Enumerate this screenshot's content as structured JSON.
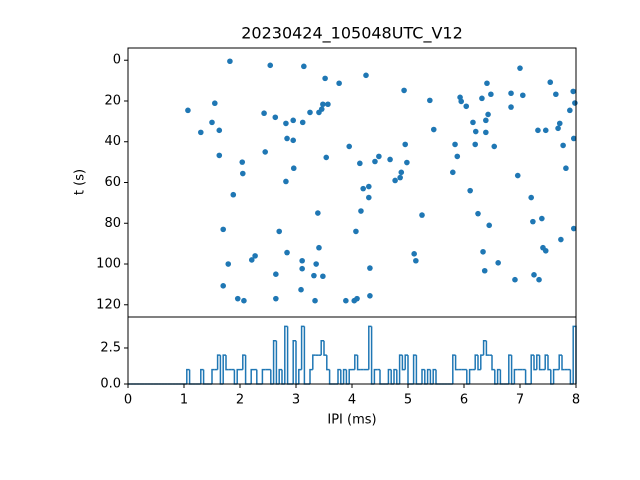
{
  "chart_data": [
    {
      "type": "scatter",
      "title": "20230424_105048UTC_V12",
      "ylabel": "t (s)",
      "color": "#1f77b4",
      "x": [
        1.07,
        1.3,
        1.5,
        1.55,
        1.63,
        1.63,
        1.7,
        1.7,
        1.79,
        1.82,
        1.88,
        1.96,
        2.04,
        2.05,
        2.07,
        2.21,
        2.27,
        2.43,
        2.45,
        2.54,
        2.63,
        2.64,
        2.64,
        2.7,
        2.82,
        2.82,
        2.84,
        2.84,
        2.95,
        2.95,
        2.96,
        3.11,
        3.11,
        3.09,
        3.12,
        3.14,
        3.25,
        3.32,
        3.34,
        3.36,
        3.39,
        3.41,
        3.41,
        3.46,
        3.48,
        3.48,
        3.52,
        3.54,
        3.57,
        3.77,
        3.89,
        3.95,
        4.04,
        4.09,
        4.07,
        4.14,
        4.16,
        4.2,
        4.25,
        4.3,
        4.3,
        4.32,
        4.32,
        4.41,
        4.48,
        4.68,
        4.77,
        4.86,
        4.88,
        4.93,
        4.95,
        4.98,
        5.11,
        5.14,
        5.25,
        5.39,
        5.46,
        5.8,
        5.84,
        5.88,
        5.93,
        5.95,
        6.04,
        6.11,
        6.16,
        6.2,
        6.21,
        6.25,
        6.32,
        6.34,
        6.37,
        6.39,
        6.39,
        6.41,
        6.43,
        6.45,
        6.48,
        6.54,
        6.61,
        6.84,
        6.84,
        6.91,
        6.96,
        7.0,
        7.05,
        7.2,
        7.23,
        7.25,
        7.32,
        7.34,
        7.39,
        7.41,
        7.46,
        7.46,
        7.54,
        7.64,
        7.68,
        7.71,
        7.73,
        7.77,
        7.82,
        7.89,
        7.95,
        7.96,
        7.98,
        7.96
      ],
      "y": [
        24.6,
        35.4,
        30.5,
        21.1,
        34.4,
        46.7,
        83.0,
        110.7,
        100.0,
        0.5,
        66.0,
        117.0,
        50.0,
        55.6,
        118.0,
        98.0,
        96.0,
        26.0,
        45.0,
        2.5,
        28.0,
        105.0,
        117.0,
        84.0,
        31.0,
        59.5,
        38.4,
        94.4,
        29.5,
        39.3,
        53.0,
        98.4,
        102.3,
        112.6,
        30.5,
        3.0,
        25.6,
        105.7,
        118.0,
        100.0,
        75.0,
        25.6,
        92.0,
        24.0,
        21.6,
        106.0,
        8.9,
        47.7,
        21.6,
        11.3,
        118.0,
        42.3,
        118.0,
        117.0,
        84.0,
        50.6,
        74.0,
        63.0,
        7.4,
        62.0,
        67.4,
        115.6,
        102.0,
        49.7,
        47.2,
        48.7,
        59.0,
        57.6,
        55.0,
        14.8,
        41.3,
        50.2,
        95.0,
        98.4,
        76.0,
        19.7,
        34.0,
        55.0,
        41.3,
        47.2,
        18.2,
        20.2,
        22.6,
        64.0,
        30.5,
        41.3,
        35.0,
        75.3,
        18.7,
        94.0,
        103.3,
        29.5,
        35.4,
        11.3,
        26.6,
        81.0,
        16.7,
        42.3,
        99.4,
        23.0,
        16.2,
        107.7,
        56.6,
        3.9,
        17.2,
        67.4,
        79.2,
        105.3,
        34.4,
        107.7,
        77.7,
        92.0,
        34.4,
        93.5,
        10.8,
        16.7,
        33.4,
        31.0,
        88.0,
        41.8,
        53.0,
        24.6,
        15.3,
        38.4,
        21.0,
        82.6
      ],
      "xlim": [
        0,
        8
      ],
      "ylim": [
        126,
        -6
      ],
      "yticks": [
        0,
        20,
        40,
        60,
        80,
        100,
        120
      ]
    },
    {
      "type": "histogram",
      "xlabel": "IPI (ms)",
      "color": "#1f77b4",
      "bins": [
        0,
        0.05,
        0.1,
        0.15,
        0.2,
        0.25,
        0.3,
        0.35,
        0.4,
        0.45,
        0.5,
        0.55,
        0.6,
        0.65,
        0.7,
        0.75,
        0.8,
        0.85,
        0.9,
        0.95,
        1,
        1.05,
        1.1,
        1.15,
        1.2,
        1.25,
        1.3,
        1.35,
        1.4,
        1.45,
        1.5,
        1.55,
        1.6,
        1.65,
        1.7,
        1.75,
        1.8,
        1.85,
        1.9,
        1.95,
        2,
        2.05,
        2.1,
        2.15,
        2.2,
        2.25,
        2.3,
        2.35,
        2.4,
        2.45,
        2.5,
        2.55,
        2.6,
        2.65,
        2.7,
        2.75,
        2.8,
        2.85,
        2.9,
        2.95,
        3,
        3.05,
        3.1,
        3.15,
        3.2,
        3.25,
        3.3,
        3.35,
        3.4,
        3.45,
        3.5,
        3.55,
        3.6,
        3.65,
        3.7,
        3.75,
        3.8,
        3.85,
        3.9,
        3.95,
        4,
        4.05,
        4.1,
        4.15,
        4.2,
        4.25,
        4.3,
        4.35,
        4.4,
        4.45,
        4.5,
        4.55,
        4.6,
        4.65,
        4.7,
        4.75,
        4.8,
        4.85,
        4.9,
        4.95,
        5,
        5.05,
        5.1,
        5.15,
        5.2,
        5.25,
        5.3,
        5.35,
        5.4,
        5.45,
        5.5,
        5.55,
        5.6,
        5.65,
        5.7,
        5.75,
        5.8,
        5.85,
        5.9,
        5.95,
        6,
        6.05,
        6.1,
        6.15,
        6.2,
        6.25,
        6.3,
        6.35,
        6.4,
        6.45,
        6.5,
        6.55,
        6.6,
        6.65,
        6.7,
        6.75,
        6.8,
        6.85,
        6.9,
        6.95,
        7,
        7.05,
        7.1,
        7.15,
        7.2,
        7.25,
        7.3,
        7.35,
        7.4,
        7.45,
        7.5,
        7.55,
        7.6,
        7.65,
        7.7,
        7.75,
        7.8,
        7.85,
        7.9,
        7.95,
        8
      ],
      "values": [
        0,
        0,
        0,
        0,
        0,
        0,
        0,
        0,
        0,
        0,
        0,
        0,
        0,
        0,
        0,
        0,
        0,
        0,
        0,
        0,
        0,
        1,
        0,
        0,
        0,
        0,
        1,
        0,
        0,
        0,
        1,
        1,
        2,
        0,
        2,
        1,
        1,
        1,
        0,
        1,
        1,
        2,
        0,
        0,
        1,
        1,
        0,
        0,
        1,
        1,
        1,
        0,
        3,
        0,
        1,
        0,
        4,
        0,
        0,
        3,
        0,
        1,
        4,
        0,
        0,
        1,
        2,
        2,
        2,
        3,
        2,
        1,
        0,
        0,
        0,
        1,
        0,
        1,
        0,
        1,
        1,
        2,
        1,
        1,
        1,
        1,
        4,
        0,
        1,
        1,
        0,
        0,
        0,
        1,
        0,
        1,
        0,
        2,
        1,
        2,
        0,
        0,
        2,
        0,
        0,
        1,
        0,
        1,
        0,
        1,
        0,
        0,
        0,
        0,
        0,
        0,
        2,
        1,
        1,
        1,
        1,
        0,
        1,
        1,
        2,
        1,
        2,
        3,
        2,
        2,
        1,
        0,
        1,
        0,
        0,
        0,
        2,
        0,
        1,
        1,
        1,
        1,
        0,
        0,
        2,
        1,
        2,
        1,
        1,
        2,
        1,
        0,
        1,
        1,
        2,
        1,
        1,
        1,
        0,
        4
      ],
      "xlim": [
        0,
        8
      ],
      "xticks": [
        0,
        1,
        2,
        3,
        4,
        5,
        6,
        7,
        8
      ],
      "ylim": [
        0,
        4.65
      ],
      "yticks": [
        {
          "value": 0,
          "label": "0.0"
        },
        {
          "value": 2.5,
          "label": "2.5"
        }
      ]
    }
  ]
}
